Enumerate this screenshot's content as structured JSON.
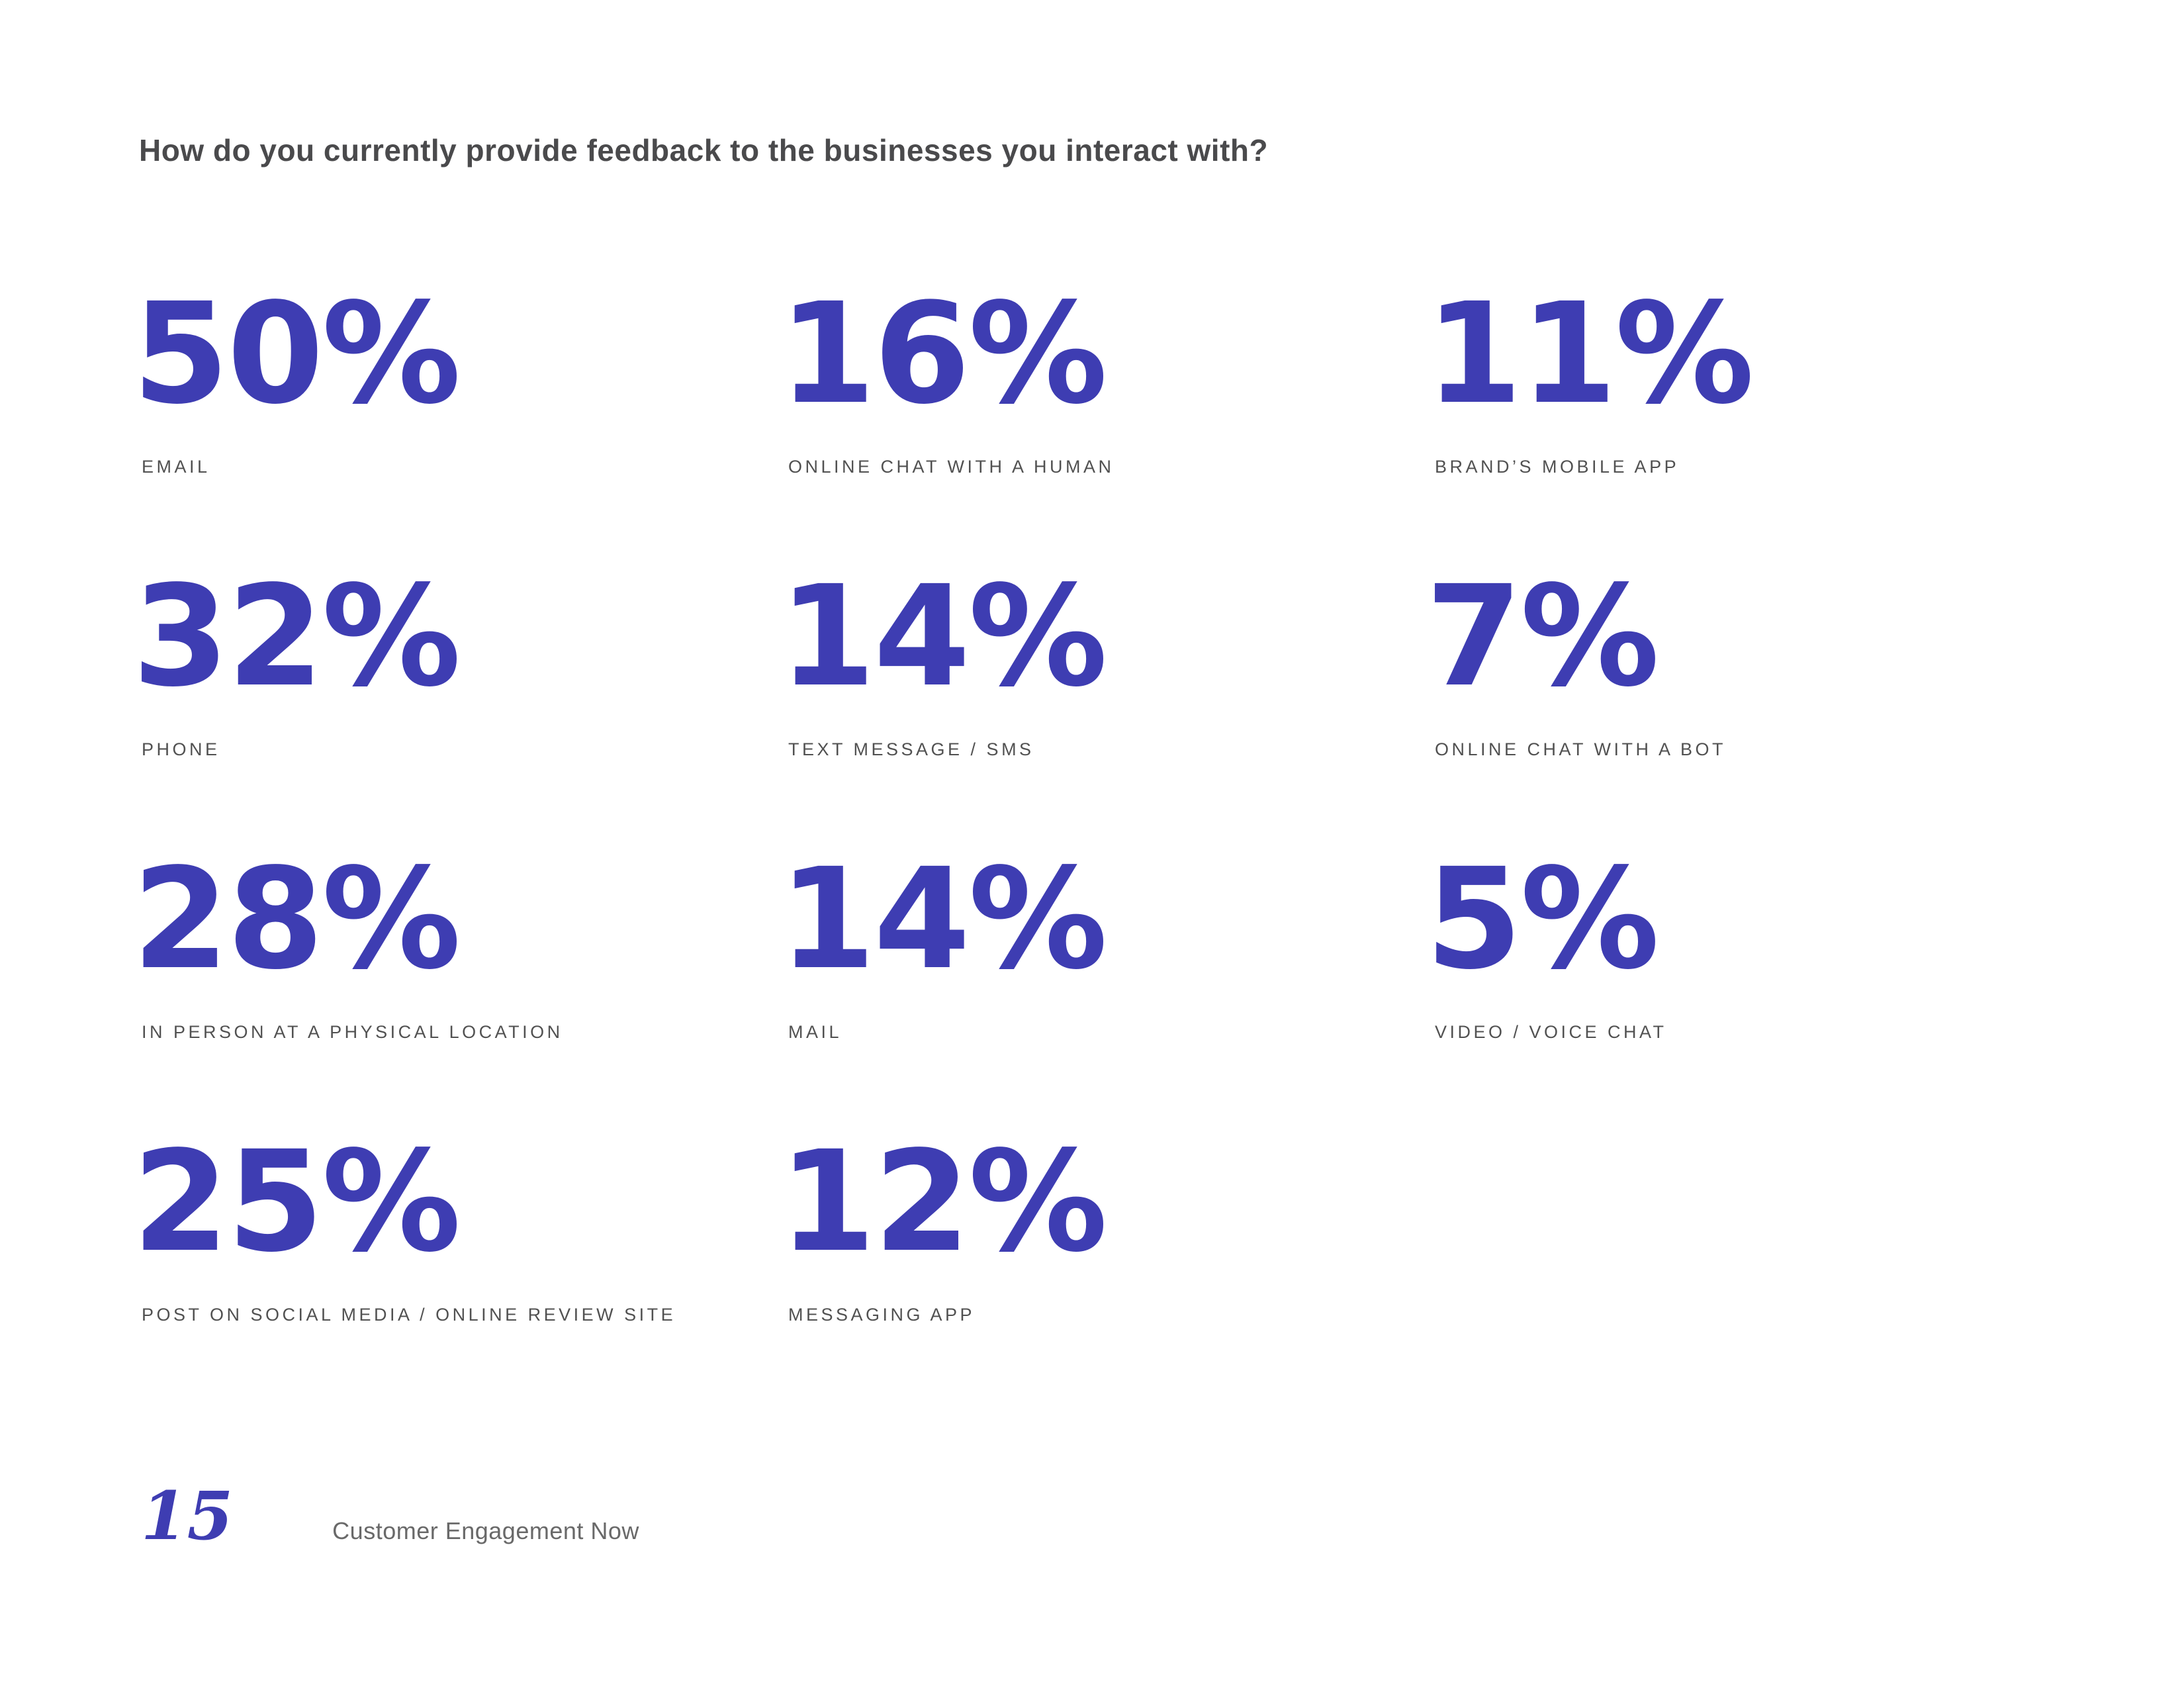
{
  "title": "How do you currently provide feedback to the businesses you interact with?",
  "accent_color": "#3e3db2",
  "title_color": "#4a4a4c",
  "label_color": "#515151",
  "stats": [
    {
      "value": "50%",
      "label": "EMAIL"
    },
    {
      "value": "16%",
      "label": "ONLINE CHAT WITH A HUMAN"
    },
    {
      "value": "11%",
      "label": "BRAND’S MOBILE APP"
    },
    {
      "value": "32%",
      "label": "PHONE"
    },
    {
      "value": "14%",
      "label": "TEXT MESSAGE / SMS"
    },
    {
      "value": "7%",
      "label": "ONLINE CHAT WITH A BOT"
    },
    {
      "value": "28%",
      "label": "IN PERSON AT A PHYSICAL LOCATION"
    },
    {
      "value": "14%",
      "label": "MAIL"
    },
    {
      "value": "5%",
      "label": "VIDEO / VOICE CHAT"
    },
    {
      "value": "25%",
      "label": "POST ON SOCIAL MEDIA / ONLINE REVIEW SITE"
    },
    {
      "value": "12%",
      "label": "MESSAGING APP"
    }
  ],
  "footer": {
    "page_number": "15",
    "publication": "Customer Engagement Now"
  },
  "chart_data": {
    "type": "table",
    "title": "How do you currently provide feedback to the businesses you interact with?",
    "categories": [
      "EMAIL",
      "PHONE",
      "IN PERSON AT A PHYSICAL LOCATION",
      "POST ON SOCIAL MEDIA / ONLINE REVIEW SITE",
      "ONLINE CHAT WITH A HUMAN",
      "TEXT MESSAGE / SMS",
      "MAIL",
      "MESSAGING APP",
      "BRAND’S MOBILE APP",
      "ONLINE CHAT WITH A BOT",
      "VIDEO / VOICE CHAT"
    ],
    "values": [
      50,
      32,
      28,
      25,
      16,
      14,
      14,
      12,
      11,
      7,
      5
    ],
    "unit": "percent"
  }
}
